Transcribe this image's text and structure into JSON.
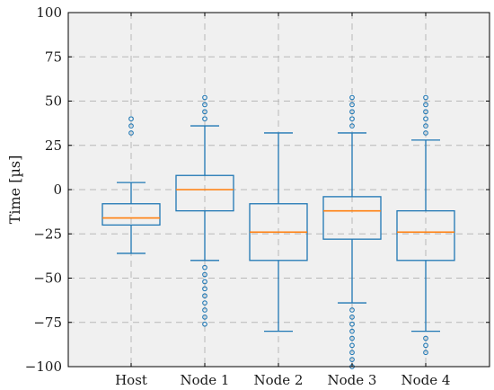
{
  "chart_data": {
    "type": "boxplot",
    "ylabel": "Time [µs]",
    "ylim": [
      -100,
      100
    ],
    "yticks": [
      100,
      75,
      50,
      25,
      0,
      -25,
      -50,
      -75,
      -100
    ],
    "grid": true,
    "categories": [
      "Host",
      "Node 1",
      "Node 2",
      "Node 3",
      "Node 4"
    ],
    "boxes": [
      {
        "category": "Host",
        "whisker_low": -36,
        "q1": -20,
        "median": -16,
        "q3": -8,
        "whisker_high": 4,
        "outliers": [
          32,
          36,
          40
        ]
      },
      {
        "category": "Node 1",
        "whisker_low": -40,
        "q1": -12,
        "median": 0,
        "q3": 8,
        "whisker_high": 36,
        "outliers": [
          40,
          44,
          48,
          52,
          -44,
          -48,
          -52,
          -56,
          -60,
          -64,
          -68,
          -72,
          -76
        ]
      },
      {
        "category": "Node 2",
        "whisker_low": -80,
        "q1": -40,
        "median": -24,
        "q3": -8,
        "whisker_high": 32,
        "outliers": []
      },
      {
        "category": "Node 3",
        "whisker_low": -64,
        "q1": -28,
        "median": -12,
        "q3": -4,
        "whisker_high": 32,
        "outliers": [
          36,
          40,
          44,
          48,
          52,
          -68,
          -72,
          -76,
          -80,
          -84,
          -88,
          -92,
          -96,
          -100
        ]
      },
      {
        "category": "Node 4",
        "whisker_low": -80,
        "q1": -40,
        "median": -24,
        "q3": -12,
        "whisker_high": 28,
        "outliers": [
          32,
          36,
          40,
          44,
          48,
          52,
          -84,
          -88,
          -92
        ]
      }
    ],
    "colors": {
      "box": "#1f77b4",
      "median": "#ff7f0e",
      "background": "#f0f0f0",
      "grid": "#b8b8b8"
    }
  }
}
